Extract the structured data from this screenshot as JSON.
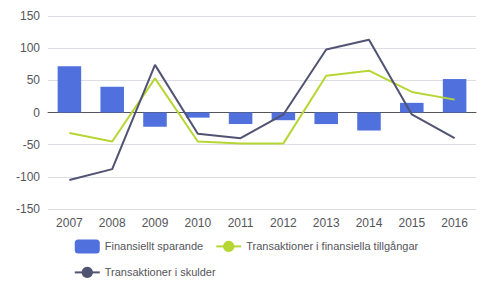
{
  "chart_data": {
    "type": "bar",
    "categories": [
      "2007",
      "2008",
      "2009",
      "2010",
      "2011",
      "2012",
      "2013",
      "2014",
      "2015",
      "2016"
    ],
    "series": [
      {
        "name": "Finansiellt sparande",
        "type": "bar",
        "values": [
          72,
          40,
          -22,
          -8,
          -18,
          -12,
          -18,
          -28,
          15,
          52
        ]
      },
      {
        "name": "Transaktioner i finansiella tillgångar",
        "type": "line",
        "values": [
          -32,
          -45,
          53,
          -45,
          -48,
          -48,
          57,
          65,
          32,
          20
        ]
      },
      {
        "name": "Transaktioner i skulder",
        "type": "line",
        "values": [
          -105,
          -88,
          74,
          -33,
          -40,
          -3,
          98,
          113,
          -3,
          -40
        ]
      }
    ],
    "ylim": [
      -150,
      150
    ],
    "yticks": [
      -150,
      -100,
      -50,
      0,
      50,
      100,
      150
    ],
    "grid": true,
    "legend": "bottom"
  }
}
